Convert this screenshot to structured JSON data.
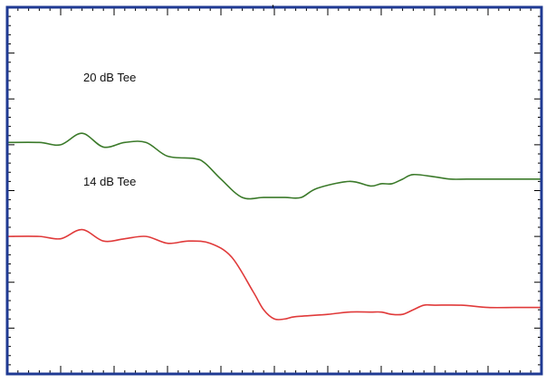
{
  "header_fragment": ", ",
  "colors": {
    "frame": "#1f3a93",
    "green": "#3b7a2a",
    "red": "#e03a3a",
    "background": "#ffffff"
  },
  "chart_data": {
    "type": "line",
    "title": "",
    "xlabel": "",
    "ylabel": "",
    "xlim": [
      0,
      10
    ],
    "ylim": [
      0,
      8
    ],
    "grid": false,
    "legend": "none",
    "x_major_ticks": [
      0,
      1,
      2,
      3,
      4,
      5,
      6,
      7,
      8,
      9,
      10
    ],
    "y_major_ticks": [
      0,
      1,
      2,
      3,
      4,
      5,
      6,
      7,
      8
    ],
    "series": [
      {
        "name": "20 dB Tee",
        "color": "#3b7a2a",
        "x": [
          0,
          0.6,
          1.0,
          1.4,
          1.8,
          2.2,
          2.6,
          3.0,
          3.5,
          3.7,
          4.0,
          4.4,
          4.8,
          5.2,
          5.5,
          5.8,
          6.4,
          6.8,
          7.0,
          7.2,
          7.4,
          7.6,
          8.0,
          8.3,
          8.6,
          9.0,
          9.4,
          10.0
        ],
        "y": [
          5.05,
          5.05,
          5.0,
          5.25,
          4.95,
          5.05,
          5.05,
          4.75,
          4.7,
          4.6,
          4.25,
          3.85,
          3.85,
          3.85,
          3.85,
          4.05,
          4.2,
          4.1,
          4.15,
          4.15,
          4.25,
          4.35,
          4.3,
          4.25,
          4.25,
          4.25,
          4.25,
          4.25
        ]
      },
      {
        "name": "14 dB Tee",
        "color": "#e03a3a",
        "x": [
          0,
          0.6,
          1.0,
          1.4,
          1.8,
          2.2,
          2.6,
          3.0,
          3.4,
          3.8,
          4.2,
          4.6,
          4.8,
          5.0,
          5.2,
          5.4,
          6.0,
          6.4,
          6.8,
          7.0,
          7.2,
          7.4,
          7.6,
          7.8,
          8.0,
          8.5,
          9.0,
          9.5,
          10.0
        ],
        "y": [
          3.0,
          3.0,
          2.95,
          3.15,
          2.9,
          2.95,
          3.0,
          2.85,
          2.9,
          2.85,
          2.55,
          1.8,
          1.4,
          1.2,
          1.2,
          1.25,
          1.3,
          1.35,
          1.35,
          1.35,
          1.3,
          1.3,
          1.4,
          1.5,
          1.5,
          1.5,
          1.45,
          1.45,
          1.45
        ]
      }
    ],
    "annotations": [
      "20 dB Tee",
      "14 dB Tee"
    ]
  }
}
